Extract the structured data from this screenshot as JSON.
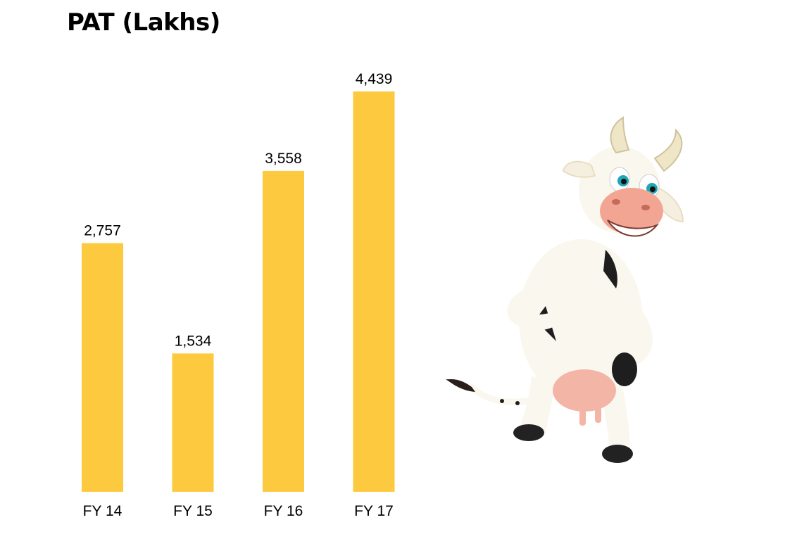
{
  "title": "PAT (Lakhs)",
  "chart_data": {
    "type": "bar",
    "title": "PAT (Lakhs)",
    "categories": [
      "FY 14",
      "FY 15",
      "FY 16",
      "FY 17"
    ],
    "values": [
      2757,
      1534,
      3558,
      4439
    ],
    "value_labels": [
      "2,757",
      "1,534",
      "3,558",
      "4,439"
    ],
    "xlabel": "",
    "ylabel": "",
    "ylim": [
      0,
      4439
    ],
    "grid": false,
    "legend": "none",
    "bar_color": "#FDC93E"
  },
  "illustration": {
    "icon": "cartoon-cow-icon",
    "colors": {
      "body": "#FAF7EE",
      "spots": "#1E1E1E",
      "muzzle": "#F3A594",
      "horn": "#EFE6C8"
    }
  }
}
